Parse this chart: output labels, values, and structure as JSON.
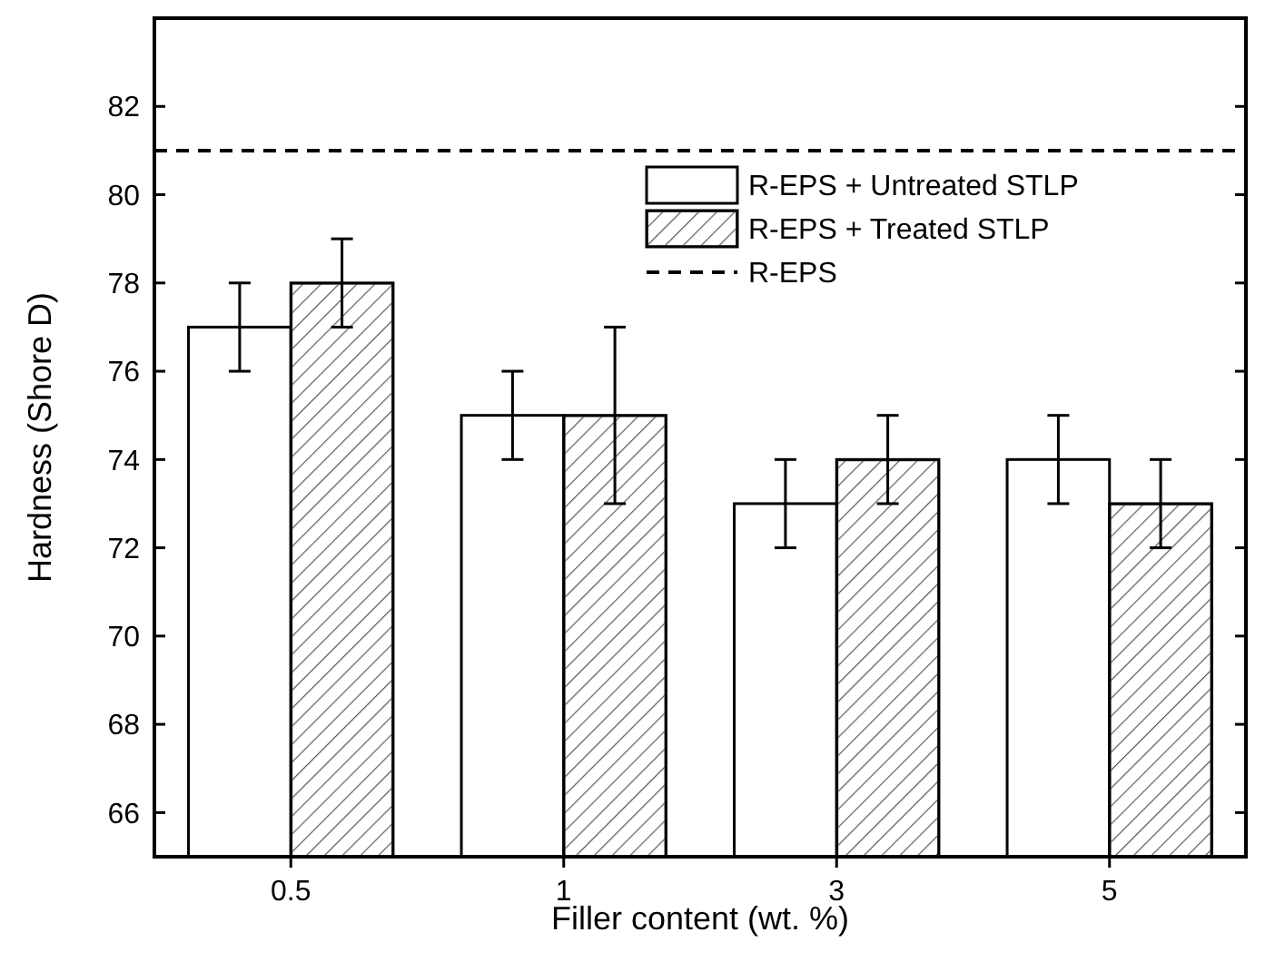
{
  "chart_data": {
    "type": "bar",
    "xlabel": "Filler content (wt. %)",
    "ylabel": "Hardness (Shore D)",
    "categories": [
      "0.5",
      "1",
      "3",
      "5"
    ],
    "series": [
      {
        "name": "R-EPS + Untreated STLP",
        "color": "#ffffff",
        "values": [
          77,
          75,
          73,
          74
        ],
        "errors": [
          1,
          1,
          1,
          1
        ]
      },
      {
        "name": "R-EPS + Treated STLP",
        "color": "#595959",
        "values": [
          78,
          75,
          74,
          73
        ],
        "errors": [
          1,
          2,
          1,
          1
        ]
      }
    ],
    "ylim": [
      65,
      84
    ],
    "yticks": [
      66,
      68,
      70,
      72,
      74,
      76,
      78,
      80,
      82
    ],
    "ref_lines": [
      {
        "axis": "y",
        "value": 81,
        "label": "R-EPS",
        "color": "#000000",
        "line_style": "dashed"
      }
    ],
    "legend": "top right",
    "grid": false
  }
}
